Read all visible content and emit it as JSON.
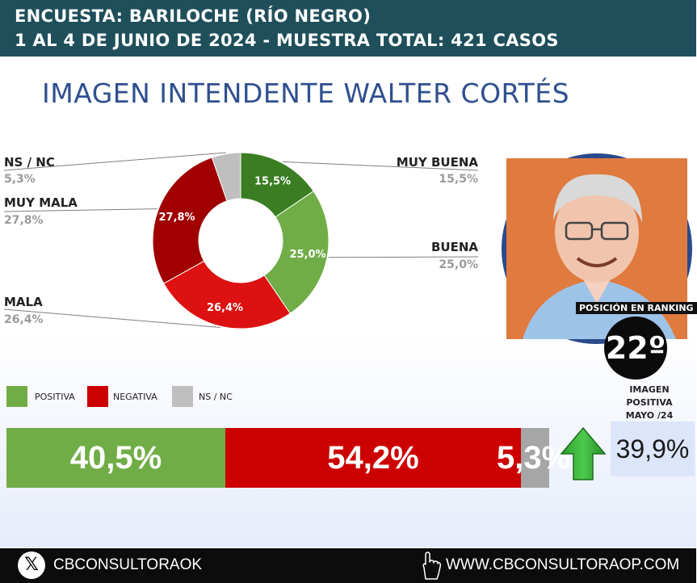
{
  "header": {
    "line1": "ENCUESTA: BARILOCHE (RÍO NEGRO)",
    "line2": "1 AL 4 DE JUNIO DE 2024 - MUESTRA TOTAL: 421 CASOS"
  },
  "title": "IMAGEN INTENDENTE WALTER CORTÉS",
  "chart_data": [
    {
      "type": "pie",
      "donut": true,
      "categories": [
        "MUY BUENA",
        "BUENA",
        "MALA",
        "MUY MALA",
        "NS / NC"
      ],
      "values": [
        15.5,
        25.0,
        26.4,
        27.8,
        5.3
      ],
      "data_labels": [
        "15,5%",
        "25,0%",
        "26,4%",
        "27,8%",
        ""
      ],
      "side_values": [
        "15,5%",
        "25,0%",
        "26,4%",
        "27,8%",
        "5,3%"
      ],
      "colors": [
        "#3a7d22",
        "#70ad47",
        "#dd1111",
        "#a00000",
        "#bfbfbf"
      ]
    },
    {
      "type": "bar",
      "orientation": "horizontal-stacked",
      "legend": [
        "POSITIVA",
        "NEGATIVA",
        "NS / NC"
      ],
      "values": [
        40.5,
        54.2,
        5.3
      ],
      "labels": [
        "40,5%",
        "54,2%",
        "5,3%"
      ],
      "colors": [
        "#70ad47",
        "#cc0000",
        "#a6a6a6"
      ]
    }
  ],
  "ranking": {
    "label": "POSICIÓN EN RANKING",
    "value": "22º"
  },
  "previous": {
    "label_lines": [
      "IMAGEN",
      "POSITIVA",
      "MAYO /24"
    ],
    "value": "39,9%",
    "trend_icon": "arrow-up-icon",
    "trend_color": "#2ea82e"
  },
  "footer": {
    "social": "CBCONSULTORAOK",
    "web": "WWW.CBCONSULTORAOP.COM"
  }
}
